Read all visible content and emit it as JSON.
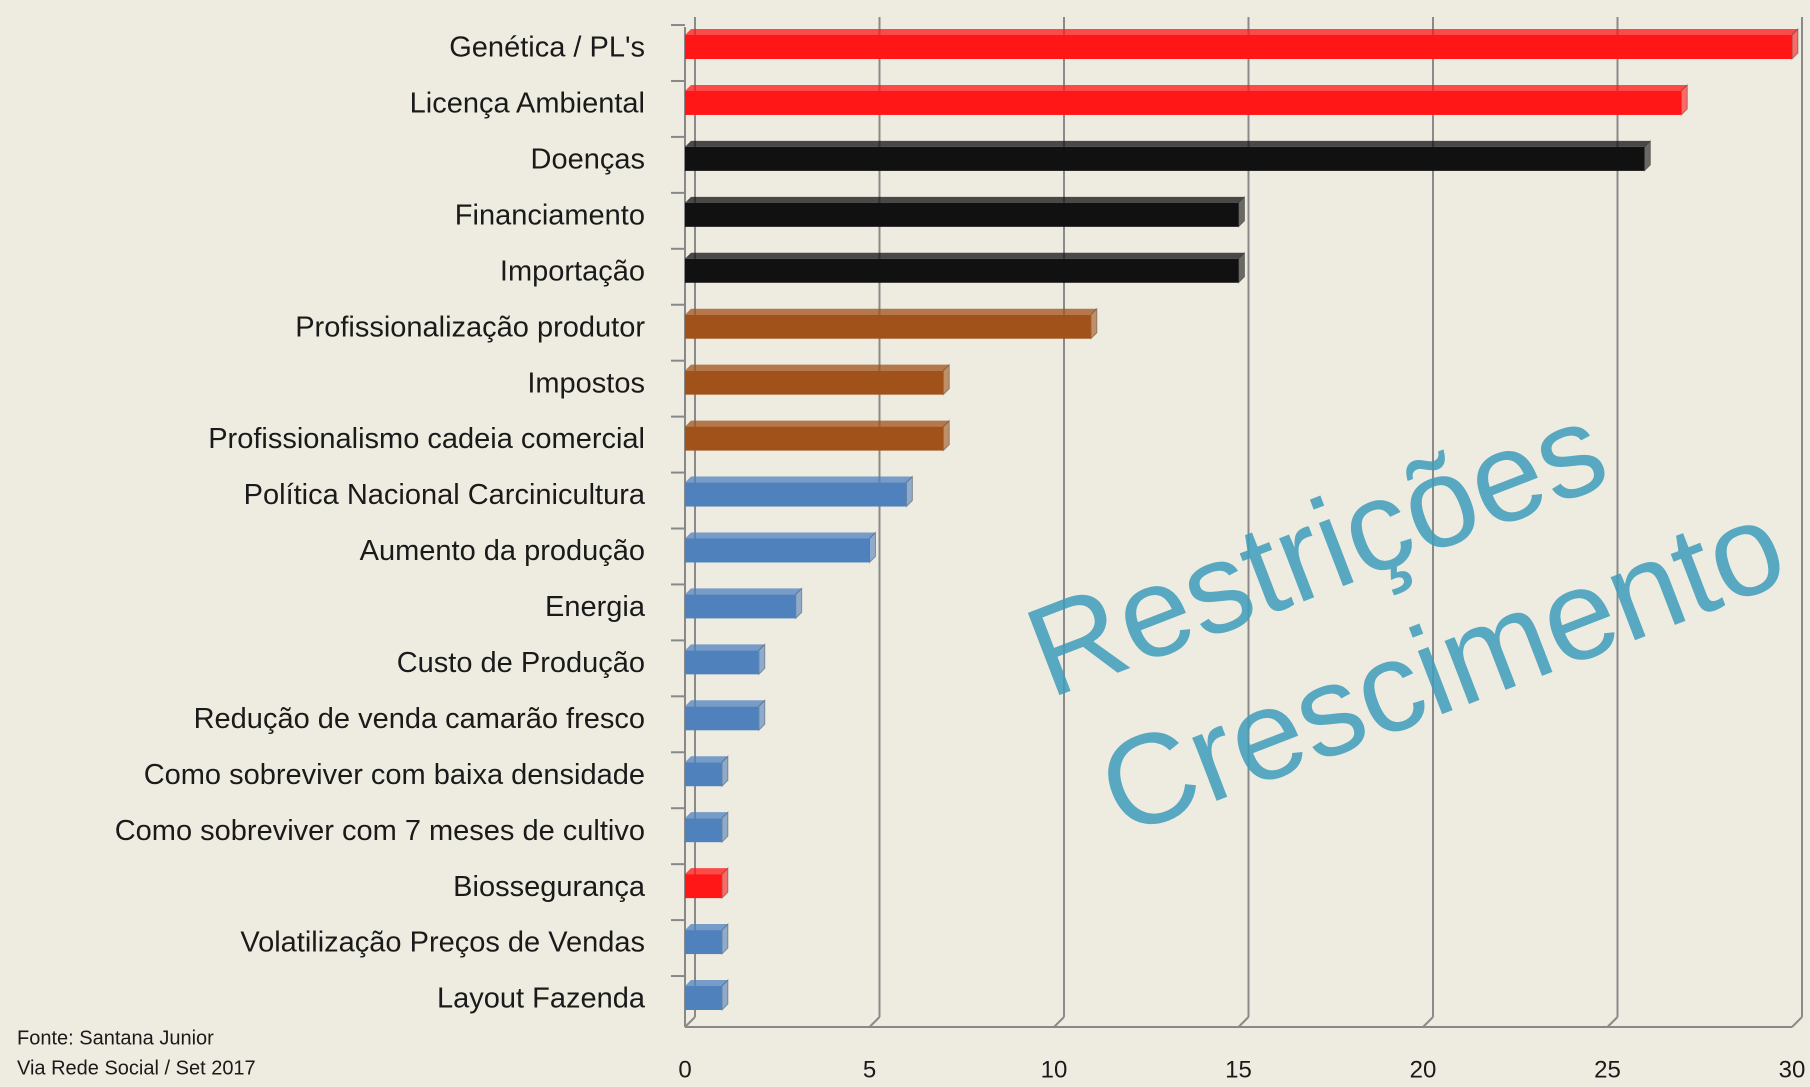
{
  "chart_data": {
    "type": "barh",
    "categories": [
      "Genética / PL's",
      "Licença Ambiental",
      "Doenças",
      "Financiamento",
      "Importação",
      "Profissionalização produtor",
      "Impostos",
      "Profissionalismo cadeia comercial",
      "Política Nacional Carcinicultura",
      "Aumento da produção",
      "Energia",
      "Custo de Produção",
      "Redução de venda camarão fresco",
      "Como sobreviver com baixa densidade",
      "Como sobreviver com 7 meses de cultivo",
      "Biossegurança",
      "Volatilização Preços de Vendas",
      "Layout Fazenda"
    ],
    "values": [
      30,
      27,
      26,
      15,
      15,
      11,
      7,
      7,
      6,
      5,
      3,
      2,
      2,
      1,
      1,
      1,
      1,
      1
    ],
    "colors": [
      "#ff1616",
      "#ff1616",
      "#111111",
      "#111111",
      "#111111",
      "#a0521a",
      "#a0521a",
      "#a0521a",
      "#4f81bd",
      "#4f81bd",
      "#4f81bd",
      "#4f81bd",
      "#4f81bd",
      "#4f81bd",
      "#4f81bd",
      "#ff1616",
      "#4f81bd",
      "#4f81bd"
    ],
    "xlim": [
      0,
      30
    ],
    "xticks": [
      0,
      5,
      10,
      15,
      20,
      25,
      30
    ],
    "grid": true,
    "annotations": [
      "Restrições",
      "Crescimento"
    ],
    "source": [
      "Fonte: Santana Junior",
      "Via Rede Social / Set 2017"
    ]
  }
}
